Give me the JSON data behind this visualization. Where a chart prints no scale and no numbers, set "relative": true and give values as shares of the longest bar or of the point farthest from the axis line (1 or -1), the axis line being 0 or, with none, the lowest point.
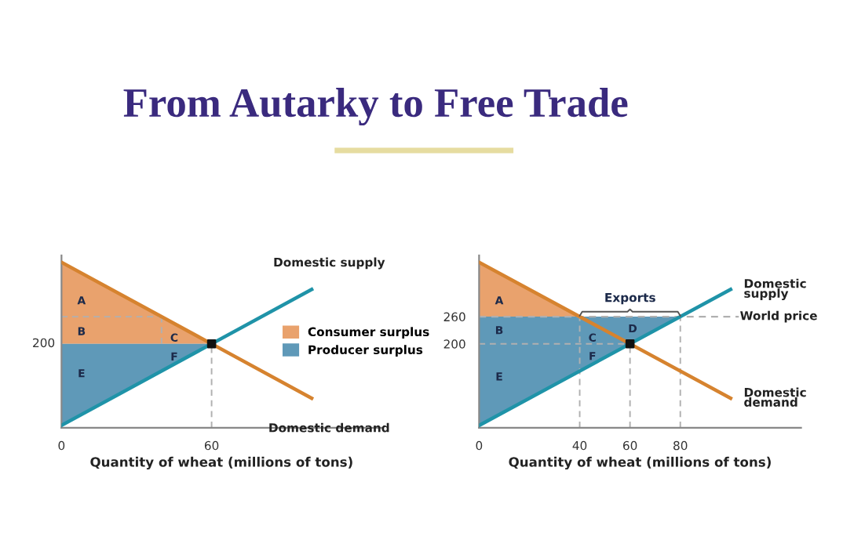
{
  "chart_data": [
    {
      "type": "line",
      "title": "From Autarky to Free Trade",
      "xlabel": "Quantity of wheat (millions of tons)",
      "xlim": [
        0,
        128
      ],
      "xticks": [
        0,
        60
      ],
      "relative": true,
      "grid": false,
      "legend": "right",
      "series": [
        {
          "type": "area",
          "name": "Consumer surplus",
          "color": "#e9a26d",
          "x": [
            0,
            60,
            0
          ],
          "values": [
            1,
            0.507,
            0.507
          ]
        },
        {
          "type": "area",
          "name": "Producer surplus",
          "color": "#5f99b8",
          "x": [
            0,
            60,
            0
          ],
          "values": [
            0.507,
            0.507,
            0.014
          ]
        },
        {
          "name": "Domestic supply",
          "color": "#1f93a8",
          "x": [
            0,
            100
          ],
          "values": [
            0.014,
            0.836
          ]
        },
        {
          "name": "Domestic demand",
          "color": "#d6832f",
          "x": [
            0,
            100
          ],
          "values": [
            1,
            0.178
          ]
        },
        {
          "color": "#b0b0b0",
          "line_style": "dashed",
          "x": [
            0,
            40
          ],
          "values": [
            0.671,
            0.671
          ]
        },
        {
          "color": "#b0b0b0",
          "line_style": "dashed",
          "x": [
            40,
            40
          ],
          "values": [
            0.507,
            0.671
          ]
        },
        {
          "color": "#b0b0b0",
          "line_style": "dashed",
          "x": [
            60,
            60
          ],
          "values": [
            0,
            0.507
          ]
        },
        {
          "type": "scatter",
          "color": "#111111",
          "x": [
            60
          ],
          "values": [
            0.507
          ]
        }
      ],
      "annotations": [
        "A",
        "B",
        "C",
        "E",
        "F",
        "200"
      ]
    },
    {
      "type": "line",
      "xlabel": "Quantity of wheat (millions of tons)",
      "xlim": [
        0,
        128
      ],
      "ylim": [
        15,
        395
      ],
      "xticks": [
        0,
        40,
        60,
        80
      ],
      "yticks": [
        200,
        260
      ],
      "grid": false,
      "series": [
        {
          "type": "area",
          "color": "#e9a26d",
          "x": [
            0,
            40,
            0
          ],
          "values": [
            380,
            260,
            260
          ]
        },
        {
          "type": "area",
          "color": "#5f99b8",
          "x": [
            0,
            80,
            0
          ],
          "values": [
            260,
            260,
            20
          ]
        },
        {
          "name": "Domestic\nsupply",
          "color": "#1f93a8",
          "x": [
            0,
            100
          ],
          "values": [
            20,
            320
          ]
        },
        {
          "name": "Domestic\ndemand",
          "color": "#d6832f",
          "x": [
            0,
            100
          ],
          "values": [
            380,
            80
          ]
        },
        {
          "color": "#b0b0b0",
          "line_style": "dashed",
          "x": [
            40,
            40
          ],
          "values": [
            15,
            260
          ]
        },
        {
          "color": "#b0b0b0",
          "line_style": "dashed",
          "x": [
            60,
            60
          ],
          "values": [
            15,
            200
          ]
        },
        {
          "color": "#b0b0b0",
          "line_style": "dashed",
          "x": [
            80,
            80
          ],
          "values": [
            15,
            260
          ]
        },
        {
          "color": "#b0b0b0",
          "line_style": "dashed",
          "x": [
            0,
            60
          ],
          "values": [
            200,
            200
          ]
        },
        {
          "type": "scatter",
          "color": "#111111",
          "x": [
            60
          ],
          "values": [
            200
          ]
        }
      ],
      "ref_lines": [
        {
          "axis": "y",
          "value": 260,
          "label": "World price",
          "color": "#b0b0b0",
          "line_style": "dashed"
        }
      ],
      "annotations": [
        "A",
        "B",
        "C",
        "D",
        "E",
        "F",
        "Exports"
      ]
    }
  ]
}
